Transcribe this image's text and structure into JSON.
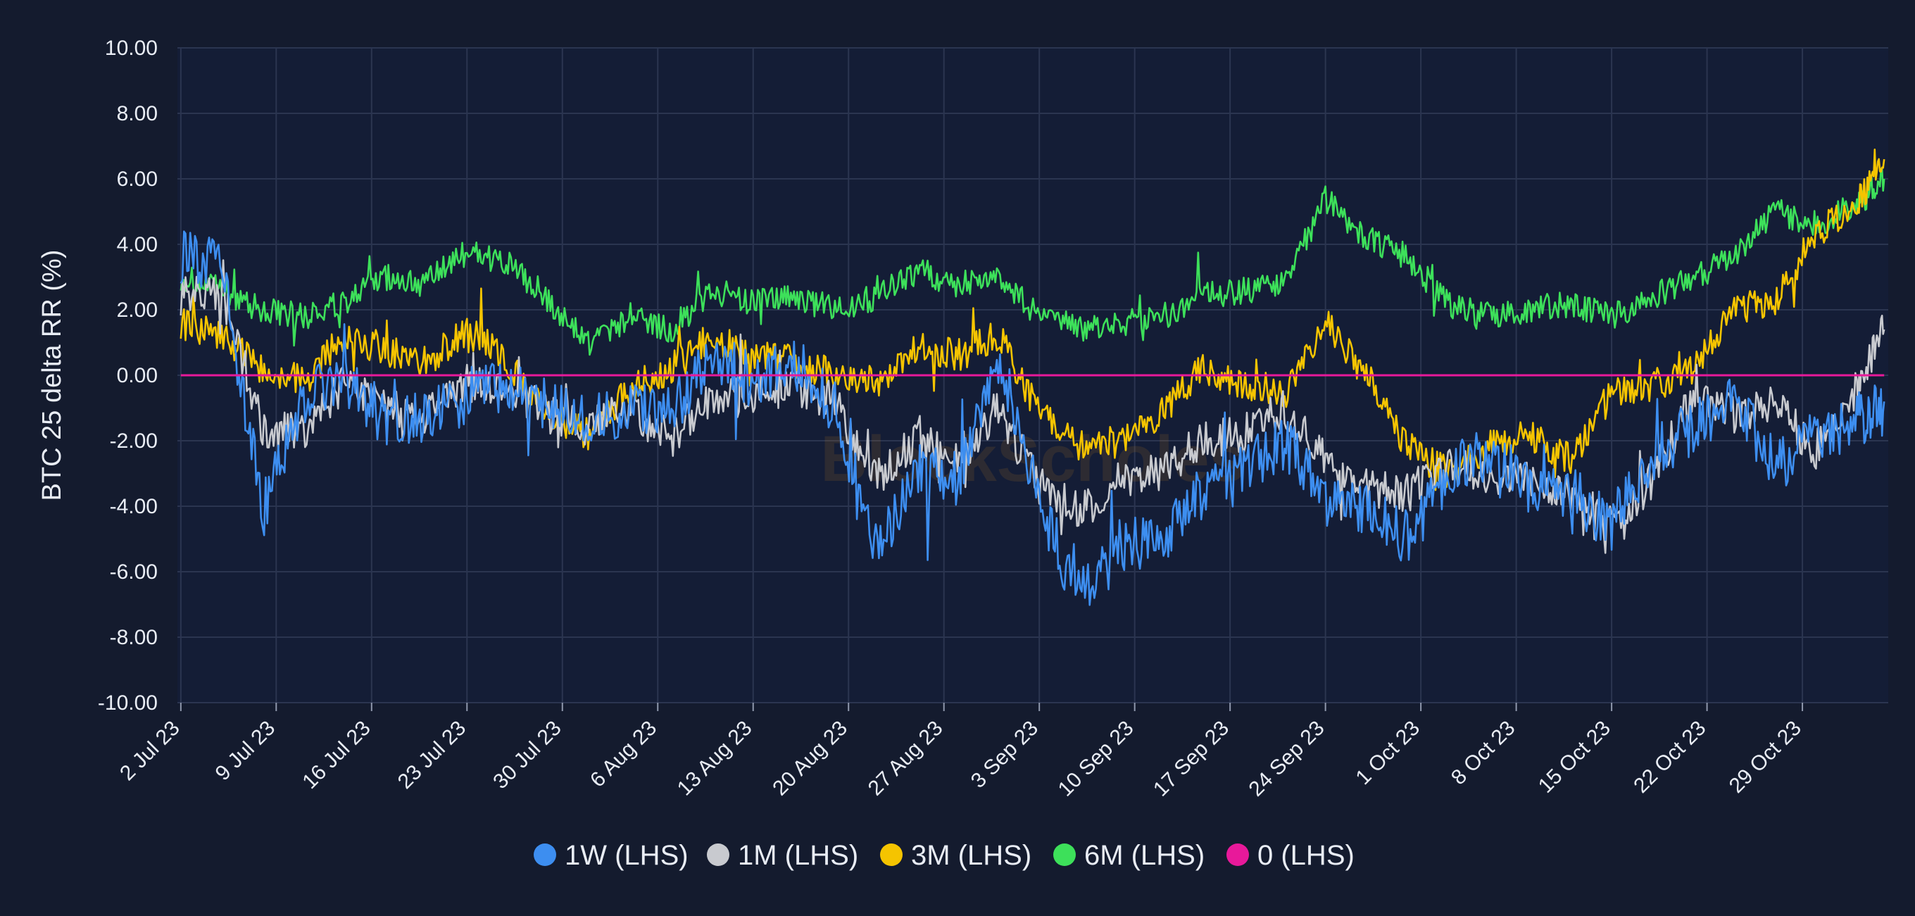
{
  "chart_data": {
    "type": "line",
    "title": "",
    "xlabel": "",
    "ylabel": "BTC 25  delta RR (%)",
    "ylim": [
      -10,
      10
    ],
    "y_ticks": [
      "10.00",
      "8.00",
      "6.00",
      "4.00",
      "2.00",
      "0.00",
      "-2.00",
      "-4.00",
      "-6.00",
      "-8.00",
      "-10.00"
    ],
    "x_range": [
      "2023-07-02",
      "2023-11-04"
    ],
    "x_ticks": [
      {
        "date": "2023-07-02",
        "label": "2 Jul 23"
      },
      {
        "date": "2023-07-09",
        "label": "9 Jul 23"
      },
      {
        "date": "2023-07-16",
        "label": "16 Jul 23"
      },
      {
        "date": "2023-07-23",
        "label": "23 Jul 23"
      },
      {
        "date": "2023-07-30",
        "label": "30 Jul 23"
      },
      {
        "date": "2023-08-06",
        "label": "6 Aug 23"
      },
      {
        "date": "2023-08-13",
        "label": "13 Aug 23"
      },
      {
        "date": "2023-08-20",
        "label": "20 Aug 23"
      },
      {
        "date": "2023-08-27",
        "label": "27 Aug 23"
      },
      {
        "date": "2023-09-03",
        "label": "3 Sep 23"
      },
      {
        "date": "2023-09-10",
        "label": "10 Sep 23"
      },
      {
        "date": "2023-09-17",
        "label": "17 Sep 23"
      },
      {
        "date": "2023-09-24",
        "label": "24 Sep 23"
      },
      {
        "date": "2023-10-01",
        "label": "1 Oct 23"
      },
      {
        "date": "2023-10-08",
        "label": "8 Oct 23"
      },
      {
        "date": "2023-10-15",
        "label": "15 Oct 23"
      },
      {
        "date": "2023-10-22",
        "label": "22 Oct 23"
      },
      {
        "date": "2023-10-29",
        "label": "29 Oct 23"
      }
    ],
    "grid": true,
    "legend_position": "bottom-center",
    "watermark": "BlockScholes",
    "colors": {
      "background": "#141b2e",
      "plot_background": "#141d36",
      "grid": "#2b3550",
      "text": "#e9edf5"
    },
    "x": [
      "2023-07-02",
      "2023-07-05",
      "2023-07-08",
      "2023-07-11",
      "2023-07-14",
      "2023-07-17",
      "2023-07-20",
      "2023-07-23",
      "2023-07-26",
      "2023-07-29",
      "2023-08-01",
      "2023-08-04",
      "2023-08-07",
      "2023-08-10",
      "2023-08-13",
      "2023-08-16",
      "2023-08-19",
      "2023-08-22",
      "2023-08-25",
      "2023-08-28",
      "2023-08-31",
      "2023-09-03",
      "2023-09-06",
      "2023-09-09",
      "2023-09-12",
      "2023-09-15",
      "2023-09-18",
      "2023-09-21",
      "2023-09-24",
      "2023-09-27",
      "2023-09-30",
      "2023-10-03",
      "2023-10-06",
      "2023-10-09",
      "2023-10-12",
      "2023-10-15",
      "2023-10-18",
      "2023-10-21",
      "2023-10-24",
      "2023-10-27",
      "2023-10-30",
      "2023-11-02",
      "2023-11-04"
    ],
    "series": [
      {
        "name": "6M (LHS)",
        "color": "#3de05a",
        "values": [
          3.0,
          2.6,
          2.0,
          1.8,
          2.2,
          3.0,
          2.8,
          3.8,
          3.4,
          2.2,
          1.0,
          1.8,
          1.4,
          2.6,
          2.2,
          2.4,
          2.0,
          2.4,
          3.2,
          2.8,
          3.0,
          1.8,
          1.4,
          1.6,
          1.8,
          2.4,
          2.6,
          2.8,
          5.4,
          4.2,
          3.6,
          2.2,
          1.8,
          2.0,
          2.2,
          1.8,
          2.4,
          3.0,
          3.6,
          5.0,
          4.6,
          5.2,
          6.0
        ]
      },
      {
        "name": "3M (LHS)",
        "color": "#f5c400",
        "values": [
          1.6,
          1.2,
          0.2,
          -0.2,
          1.2,
          0.8,
          0.4,
          1.4,
          0.4,
          -1.2,
          -1.8,
          -0.4,
          0.2,
          1.2,
          0.6,
          0.4,
          0.0,
          -0.2,
          0.8,
          0.6,
          1.2,
          -1.2,
          -2.2,
          -2.0,
          -1.2,
          0.2,
          -0.4,
          -0.6,
          1.6,
          0.0,
          -2.2,
          -3.0,
          -2.2,
          -1.8,
          -2.6,
          -0.6,
          -0.4,
          0.2,
          2.0,
          2.2,
          4.4,
          5.2,
          6.6
        ]
      },
      {
        "name": "1M (LHS)",
        "color": "#c8cacf",
        "values": [
          2.4,
          2.6,
          -1.6,
          -1.8,
          -0.2,
          -1.0,
          -1.2,
          -0.2,
          -0.4,
          -1.2,
          -1.6,
          -1.0,
          -2.0,
          -0.6,
          -0.6,
          -0.4,
          -0.8,
          -3.2,
          -2.0,
          -2.6,
          -1.0,
          -3.4,
          -4.2,
          -3.2,
          -3.0,
          -2.0,
          -1.8,
          -1.0,
          -2.6,
          -3.4,
          -3.6,
          -2.8,
          -3.0,
          -3.2,
          -3.6,
          -4.6,
          -3.2,
          -0.6,
          -1.2,
          -0.8,
          -2.4,
          -0.4,
          1.4
        ]
      },
      {
        "name": "1W (LHS)",
        "color": "#3d8ef0",
        "values": [
          3.6,
          3.4,
          -4.2,
          -0.8,
          0.0,
          -1.4,
          -1.4,
          -0.6,
          -0.2,
          -1.0,
          -1.4,
          -1.0,
          -1.2,
          0.6,
          -0.2,
          0.4,
          -1.0,
          -5.4,
          -2.8,
          -3.2,
          0.6,
          -4.0,
          -6.8,
          -5.2,
          -5.0,
          -3.6,
          -3.0,
          -2.0,
          -3.8,
          -4.2,
          -5.0,
          -3.0,
          -2.4,
          -3.4,
          -3.6,
          -4.6,
          -2.4,
          -1.6,
          -0.6,
          -2.8,
          -1.8,
          -1.4,
          -0.8
        ]
      },
      {
        "name": "0 (LHS)",
        "color": "#e8199a",
        "values": [
          0,
          0,
          0,
          0,
          0,
          0,
          0,
          0,
          0,
          0,
          0,
          0,
          0,
          0,
          0,
          0,
          0,
          0,
          0,
          0,
          0,
          0,
          0,
          0,
          0,
          0,
          0,
          0,
          0,
          0,
          0,
          0,
          0,
          0,
          0,
          0,
          0,
          0,
          0,
          0,
          0,
          0,
          0
        ]
      }
    ],
    "legend": [
      {
        "label": "1W (LHS)",
        "color": "#3d8ef0"
      },
      {
        "label": "1M (LHS)",
        "color": "#c8cacf"
      },
      {
        "label": "3M (LHS)",
        "color": "#f5c400"
      },
      {
        "label": "6M (LHS)",
        "color": "#3de05a"
      },
      {
        "label": "0 (LHS)",
        "color": "#e8199a"
      }
    ]
  }
}
